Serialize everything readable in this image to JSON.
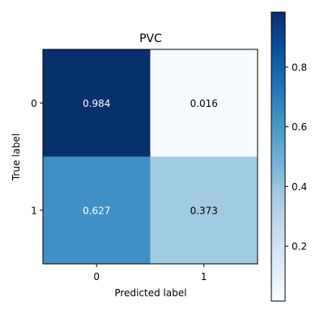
{
  "chart_data": {
    "type": "heatmap",
    "title": "PVC",
    "xlabel": "Predicted label",
    "ylabel": "True label",
    "x_categories": [
      "0",
      "1"
    ],
    "y_categories": [
      "0",
      "1"
    ],
    "values": [
      [
        0.984,
        0.016
      ],
      [
        0.627,
        0.373
      ]
    ],
    "cell_labels": [
      [
        "0.984",
        "0.016"
      ],
      [
        "0.627",
        "0.373"
      ]
    ],
    "colormap": "Blues",
    "colorbar": {
      "range": [
        0.016,
        0.984
      ],
      "ticks": [
        0.2,
        0.4,
        0.6,
        0.8
      ],
      "tick_labels": [
        "0.2",
        "0.4",
        "0.6",
        "0.8"
      ]
    },
    "text_color_light": "#ffffff",
    "text_color_dark": "#000000"
  }
}
